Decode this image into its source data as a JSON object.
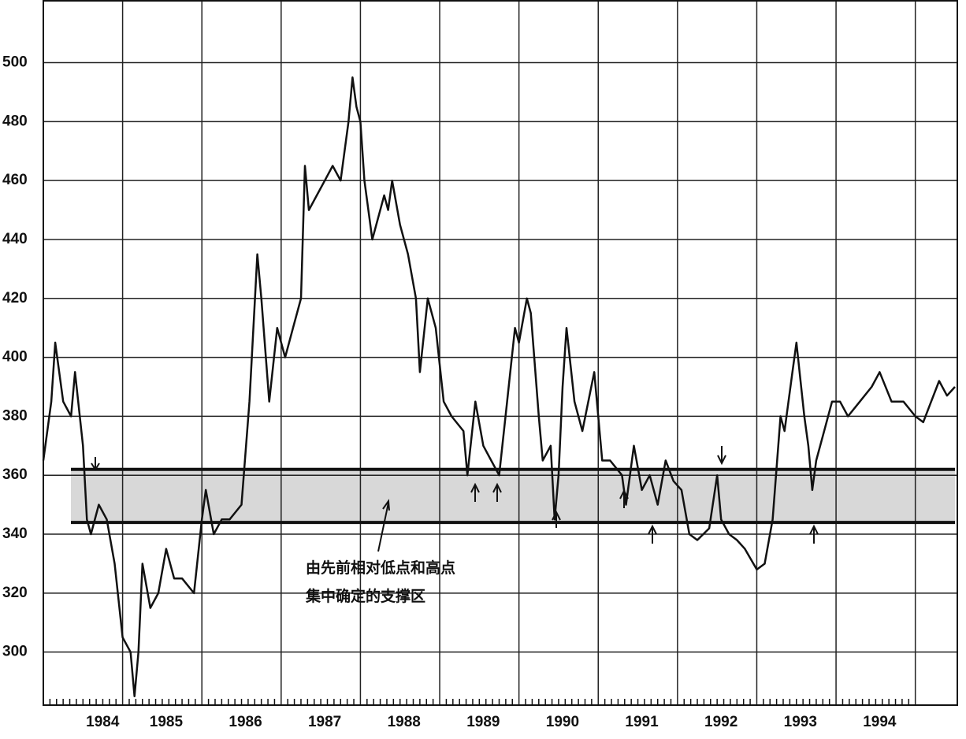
{
  "chart_data": {
    "type": "line",
    "annotation": [
      "由先前相对低点和高点",
      "集中确定的支撑区"
    ],
    "support_zone": [
      344,
      362
    ],
    "x": [
      1984.0,
      1984.1,
      1984.15,
      1984.25,
      1984.35,
      1984.4,
      1984.5,
      1984.55,
      1984.6,
      1984.7,
      1984.8,
      1984.9,
      1985.0,
      1985.1,
      1985.15,
      1985.2,
      1985.25,
      1985.35,
      1985.45,
      1985.55,
      1985.65,
      1985.75,
      1985.9,
      1986.0,
      1986.05,
      1986.15,
      1986.25,
      1986.35,
      1986.5,
      1986.6,
      1986.7,
      1986.75,
      1986.85,
      1986.95,
      1987.05,
      1987.15,
      1987.25,
      1987.3,
      1987.35,
      1987.45,
      1987.55,
      1987.65,
      1987.75,
      1987.85,
      1987.9,
      1987.95,
      1988.0,
      1988.05,
      1988.15,
      1988.25,
      1988.3,
      1988.35,
      1988.4,
      1988.5,
      1988.6,
      1988.7,
      1988.75,
      1988.85,
      1988.95,
      1989.05,
      1989.15,
      1989.3,
      1989.35,
      1989.45,
      1989.55,
      1989.65,
      1989.75,
      1989.85,
      1989.95,
      1990.0,
      1990.1,
      1990.15,
      1990.25,
      1990.3,
      1990.4,
      1990.45,
      1990.5,
      1990.55,
      1990.6,
      1990.7,
      1990.8,
      1990.95,
      1991.05,
      1991.15,
      1991.3,
      1991.35,
      1991.45,
      1991.55,
      1991.65,
      1991.75,
      1991.85,
      1991.95,
      1992.05,
      1992.15,
      1992.25,
      1992.4,
      1992.5,
      1992.55,
      1992.65,
      1992.75,
      1992.85,
      1993.0,
      1993.1,
      1993.2,
      1993.3,
      1993.35,
      1993.45,
      1993.5,
      1993.6,
      1993.65,
      1993.7,
      1993.75,
      1993.85,
      1993.95,
      1994.05,
      1994.15,
      1994.3,
      1994.45,
      1994.55,
      1994.7,
      1994.85,
      1995.0,
      1995.1,
      1995.2,
      1995.3,
      1995.4,
      1995.5
    ],
    "series": [
      {
        "color": "#111111",
        "values": [
          365,
          385,
          405,
          385,
          380,
          395,
          370,
          345,
          340,
          350,
          345,
          330,
          305,
          300,
          285,
          300,
          330,
          315,
          320,
          335,
          325,
          325,
          320,
          345,
          355,
          340,
          345,
          345,
          350,
          385,
          435,
          420,
          385,
          410,
          400,
          410,
          420,
          465,
          450,
          455,
          460,
          465,
          460,
          480,
          495,
          485,
          480,
          460,
          440,
          450,
          455,
          450,
          460,
          445,
          435,
          420,
          395,
          420,
          410,
          385,
          380,
          375,
          360,
          385,
          370,
          365,
          360,
          385,
          410,
          405,
          420,
          415,
          380,
          365,
          370,
          345,
          360,
          390,
          410,
          385,
          375,
          395,
          365,
          365,
          360,
          350,
          370,
          355,
          360,
          350,
          365,
          358,
          355,
          340,
          338,
          342,
          360,
          345,
          340,
          338,
          335,
          328,
          330,
          345,
          380,
          375,
          395,
          405,
          380,
          370,
          355,
          365,
          375,
          385,
          385,
          380,
          385,
          390,
          395,
          385,
          385,
          380,
          378,
          385,
          392,
          387,
          390
        ]
      }
    ],
    "xlim": [
      1984,
      1995.53
    ],
    "xticks": [
      1984,
      1985,
      1986,
      1987,
      1988,
      1989,
      1990,
      1991,
      1992,
      1993,
      1994
    ],
    "ylim": [
      282,
      521
    ],
    "yticks": [
      300,
      320,
      340,
      360,
      380,
      400,
      420,
      440,
      460,
      480,
      500
    ],
    "grid": true
  }
}
